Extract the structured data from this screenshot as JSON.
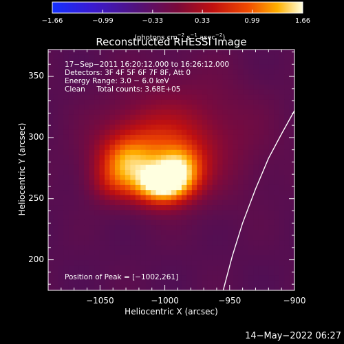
{
  "chart_data": {
    "type": "heatmap",
    "title": "Reconstructed RHESSI Image",
    "xlabel": "Heliocentric X (arcsec)",
    "ylabel": "Heliocentric Y (arcsec)",
    "xlim": [
      -1090,
      -900
    ],
    "ylim": [
      175,
      372
    ],
    "x_ticks": [
      -1050,
      -1000,
      -950,
      -900
    ],
    "x_tick_labels": [
      "−1050",
      "−1000",
      "−950",
      "−900"
    ],
    "y_ticks": [
      200,
      250,
      300,
      350
    ],
    "y_tick_labels": [
      "200",
      "250",
      "300",
      "350"
    ],
    "colorbar": {
      "min": -1.66,
      "max": 1.66,
      "ticks": [
        -1.66,
        -0.99,
        -0.33,
        0.33,
        0.99,
        1.66
      ],
      "tick_labels": [
        "−1.66",
        "−0.99",
        "−0.33",
        "0.33",
        "0.99",
        "1.66"
      ],
      "label_parts": [
        "(photons cm",
        "−2",
        " s",
        "−1",
        " asec",
        "−2",
        ")"
      ],
      "colormap": "RHESSI red-temperature with blue negatives"
    },
    "info_lines": [
      "17−Sep−2011 16:20:12.000 to 16:26:12.000",
      "Detectors: 3F 4F 5F 6F 7F 8F, Att 0",
      "Energy Range: 3.0 − 6.0 keV",
      "Clean     Total counts: 3.68E+05"
    ],
    "peak_label": "Position of Peak = [−1002,261]",
    "peak": {
      "x": -1002,
      "y": 261,
      "value": 1.66
    },
    "sources": [
      {
        "x": -1002,
        "y": 262,
        "sx": 15,
        "sy": 11,
        "amp": 1.55
      },
      {
        "x": -988,
        "y": 276,
        "sx": 12,
        "sy": 12,
        "amp": 0.75
      },
      {
        "x": -1030,
        "y": 280,
        "sx": 14,
        "sy": 13,
        "amp": 0.7
      },
      {
        "x": -1010,
        "y": 290,
        "sx": 26,
        "sy": 20,
        "amp": 0.55
      },
      {
        "x": -1040,
        "y": 262,
        "sx": 12,
        "sy": 11,
        "amp": 0.35
      },
      {
        "x": -985,
        "y": 300,
        "sx": 40,
        "sy": 36,
        "amp": 0.28
      }
    ],
    "background_level": 0.09,
    "limb_curve": [
      [
        -900,
        322
      ],
      [
        -910,
        303
      ],
      [
        -920,
        283
      ],
      [
        -930,
        258
      ],
      [
        -940,
        230
      ],
      [
        -948,
        203
      ],
      [
        -955,
        175
      ]
    ],
    "grid": false
  },
  "footer": {
    "timestamp": "14−May−2022 06:27"
  },
  "colors": {
    "background": "#000000",
    "foreground": "#ffffff",
    "limb": "#ffffff"
  }
}
